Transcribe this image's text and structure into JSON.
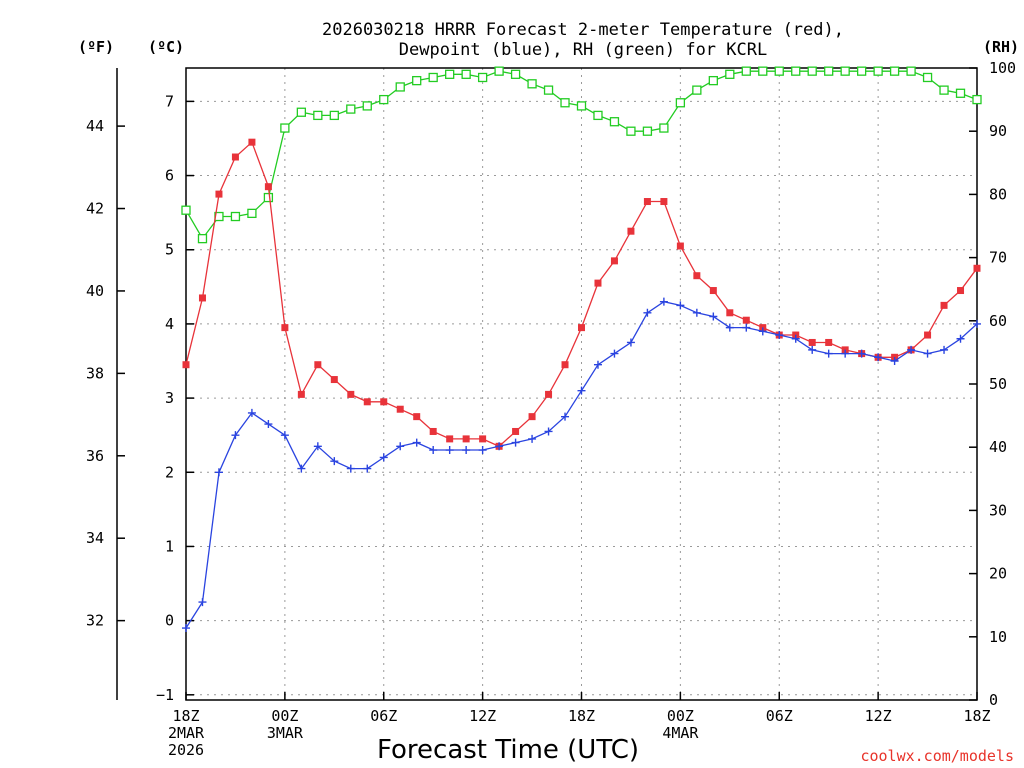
{
  "chart_data": {
    "type": "line",
    "title": [
      "2026030218 HRRR Forecast 2-meter Temperature (red),",
      "Dewpoint (blue), RH (green) for KCRL"
    ],
    "xlabel": "Forecast Time (UTC)",
    "credit": "coolwx.com/models",
    "units": {
      "left_outer": "(ºF)",
      "left_inner": "(ºC)",
      "right": "(RH)"
    },
    "x_hours_range": [
      0,
      48
    ],
    "x_ticks": [
      {
        "hour": 0,
        "lines": [
          "18Z",
          "2MAR",
          "2026"
        ]
      },
      {
        "hour": 6,
        "lines": [
          "00Z",
          "3MAR"
        ]
      },
      {
        "hour": 12,
        "lines": [
          "06Z"
        ]
      },
      {
        "hour": 18,
        "lines": [
          "12Z"
        ]
      },
      {
        "hour": 24,
        "lines": [
          "18Z"
        ]
      },
      {
        "hour": 30,
        "lines": [
          "00Z",
          "4MAR"
        ]
      },
      {
        "hour": 36,
        "lines": [
          "06Z"
        ]
      },
      {
        "hour": 42,
        "lines": [
          "12Z"
        ]
      },
      {
        "hour": 48,
        "lines": [
          "18Z"
        ]
      }
    ],
    "celsius_axis": {
      "range": [
        -1.07,
        7.45
      ],
      "ticks": [
        -1,
        0,
        1,
        2,
        3,
        4,
        5,
        6,
        7
      ]
    },
    "fahrenheit_axis": {
      "ticks": [
        32,
        34,
        36,
        38,
        40,
        42,
        44
      ]
    },
    "rh_axis": {
      "range": [
        0,
        100
      ],
      "ticks": [
        0,
        10,
        20,
        30,
        40,
        50,
        60,
        70,
        80,
        90,
        100
      ]
    },
    "series": [
      {
        "name": "2-meter Temperature",
        "unit": "C",
        "color": "#e8333a",
        "marker": "filled-square",
        "values": [
          3.45,
          4.35,
          5.75,
          6.25,
          6.45,
          5.85,
          3.95,
          3.05,
          3.45,
          3.25,
          3.05,
          2.95,
          2.95,
          2.85,
          2.75,
          2.55,
          2.45,
          2.45,
          2.45,
          2.35,
          2.55,
          2.75,
          3.05,
          3.45,
          3.95,
          4.55,
          4.85,
          5.25,
          5.65,
          5.65,
          5.05,
          4.65,
          4.45,
          4.15,
          4.05,
          3.95,
          3.85,
          3.85,
          3.75,
          3.75,
          3.65,
          3.6,
          3.55,
          3.55,
          3.65,
          3.85,
          4.25,
          4.45,
          4.75
        ]
      },
      {
        "name": "Dewpoint",
        "unit": "C",
        "color": "#2a44e0",
        "marker": "plus",
        "values": [
          -0.1,
          0.25,
          2.0,
          2.5,
          2.8,
          2.65,
          2.5,
          2.05,
          2.35,
          2.15,
          2.05,
          2.05,
          2.2,
          2.35,
          2.4,
          2.3,
          2.3,
          2.3,
          2.3,
          2.35,
          2.4,
          2.45,
          2.55,
          2.75,
          3.1,
          3.45,
          3.6,
          3.75,
          4.15,
          4.3,
          4.25,
          4.15,
          4.1,
          3.95,
          3.95,
          3.9,
          3.85,
          3.8,
          3.65,
          3.6,
          3.6,
          3.6,
          3.55,
          3.5,
          3.65,
          3.6,
          3.65,
          3.8,
          4.0
        ]
      },
      {
        "name": "RH",
        "unit": "%",
        "color": "#22cc22",
        "marker": "open-square",
        "values": [
          77.5,
          73,
          76.5,
          76.5,
          77,
          79.5,
          90.5,
          93,
          92.5,
          92.5,
          93.5,
          94,
          95,
          97,
          98,
          98.5,
          99,
          99,
          98.5,
          99.5,
          99,
          97.5,
          96.5,
          94.5,
          94,
          92.5,
          91.5,
          90,
          90,
          90.5,
          94.5,
          96.5,
          98,
          99,
          99.5,
          99.5,
          99.5,
          99.5,
          99.5,
          99.5,
          99.5,
          99.5,
          99.5,
          99.5,
          99.5,
          98.5,
          96.5,
          96,
          95
        ]
      }
    ]
  }
}
